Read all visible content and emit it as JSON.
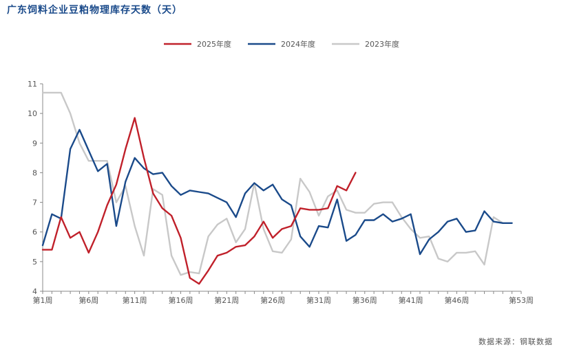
{
  "header": {
    "title": "广东饲料企业豆粕物理库存天数（天）"
  },
  "footer": {
    "source": "数据来源：钢联数据"
  },
  "chart_data": {
    "type": "line",
    "title": "广东饲料企业豆粕物理库存天数（天）",
    "xlabel": "",
    "ylabel": "",
    "ylim": [
      4,
      11
    ],
    "yticks": [
      4,
      5,
      6,
      7,
      8,
      9,
      10,
      11
    ],
    "xlim": [
      1,
      53
    ],
    "xticks": [
      {
        "week": 1,
        "label": "第1周"
      },
      {
        "week": 6,
        "label": "第6周"
      },
      {
        "week": 11,
        "label": "第11周"
      },
      {
        "week": 16,
        "label": "第16周"
      },
      {
        "week": 21,
        "label": "第21周"
      },
      {
        "week": 26,
        "label": "第26周"
      },
      {
        "week": 31,
        "label": "第31周"
      },
      {
        "week": 36,
        "label": "第36周"
      },
      {
        "week": 41,
        "label": "第41周"
      },
      {
        "week": 46,
        "label": "第46周"
      },
      {
        "week": 53,
        "label": "第53周"
      }
    ],
    "grid": false,
    "legend_position": "top-center",
    "series": [
      {
        "name": "2025年度",
        "color": "#c0202a",
        "start_week": 1,
        "values": [
          5.4,
          5.4,
          6.5,
          5.8,
          6.0,
          5.3,
          6.0,
          6.9,
          7.6,
          8.8,
          9.85,
          8.5,
          7.3,
          6.8,
          6.55,
          5.8,
          4.45,
          4.25,
          4.7,
          5.2,
          5.3,
          5.5,
          5.55,
          5.85,
          6.35,
          5.8,
          6.1,
          6.2,
          6.8,
          6.75,
          6.75,
          6.8,
          7.55,
          7.4,
          8.0
        ]
      },
      {
        "name": "2024年度",
        "color": "#1a4a8a",
        "start_week": 1,
        "values": [
          5.55,
          6.6,
          6.45,
          8.8,
          9.45,
          8.75,
          8.05,
          8.3,
          6.2,
          7.7,
          8.5,
          8.15,
          7.95,
          8.0,
          7.55,
          7.25,
          7.4,
          7.35,
          7.3,
          7.15,
          7.0,
          6.5,
          7.3,
          7.65,
          7.4,
          7.6,
          7.1,
          6.9,
          5.85,
          5.5,
          6.2,
          6.15,
          7.1,
          5.7,
          5.9,
          6.4,
          6.4,
          6.6,
          6.35,
          6.45,
          6.6,
          5.25,
          5.75,
          6.0,
          6.35,
          6.45,
          6.0,
          6.05,
          6.7,
          6.35,
          6.3,
          6.3
        ]
      },
      {
        "name": "2023年度",
        "color": "#c8c8c8",
        "start_week": 1,
        "values": [
          10.7,
          10.7,
          10.7,
          10.0,
          9.0,
          8.4,
          8.4,
          8.4,
          7.0,
          7.55,
          6.2,
          5.2,
          7.45,
          7.25,
          5.2,
          4.55,
          4.65,
          4.6,
          5.85,
          6.25,
          6.45,
          5.65,
          6.1,
          7.65,
          6.1,
          5.35,
          5.3,
          5.75,
          7.8,
          7.35,
          6.55,
          7.2,
          7.4,
          6.75,
          6.65,
          6.65,
          6.95,
          7.0,
          7.0,
          6.5,
          6.1,
          5.8,
          5.85,
          5.1,
          5.0,
          5.3,
          5.3,
          5.35,
          4.9,
          6.5,
          6.3
        ]
      }
    ]
  }
}
